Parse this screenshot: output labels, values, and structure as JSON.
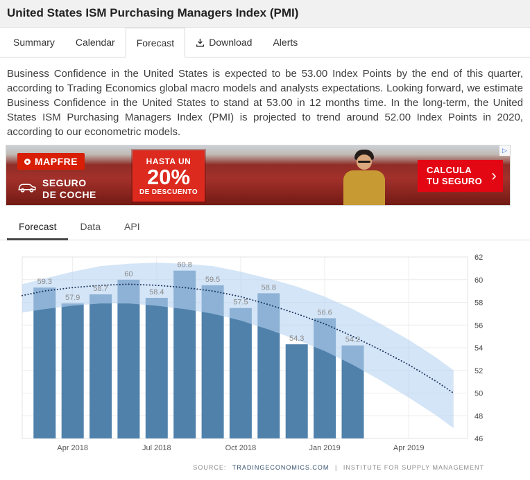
{
  "header": {
    "title": "United States ISM Purchasing Managers Index (PMI)"
  },
  "main_tabs": [
    {
      "label": "Summary"
    },
    {
      "label": "Calendar"
    },
    {
      "label": "Forecast"
    },
    {
      "label": "Download"
    },
    {
      "label": "Alerts"
    }
  ],
  "active_main_tab": "Forecast",
  "description": "Business Confidence in the United States is expected to be 53.00 Index Points by the end of this quarter, according to Trading Economics global macro models and analysts expectations. Looking forward, we estimate Business Confidence in the United States to stand at 53.00 in 12 months time. In the long-term, the United States ISM Purchasing Managers Index (PMI) is projected to trend around 52.00 Index Points in 2020, according to our econometric models.",
  "ad": {
    "brand": "MAPFRE",
    "product_line1": "SEGURO",
    "product_line2": "DE COCHE",
    "offer_top": "HASTA UN",
    "offer_value": "20%",
    "offer_bottom": "DE DESCUENTO",
    "cta_line1": "CALCULA",
    "cta_line2": "TU SEGURO",
    "chevron": "›",
    "adchoices_glyph": "▷"
  },
  "sub_tabs": [
    {
      "label": "Forecast"
    },
    {
      "label": "Data"
    },
    {
      "label": "API"
    }
  ],
  "active_sub_tab": "Forecast",
  "chart_data": {
    "type": "bar",
    "title": "United States ISM Purchasing Managers Index (PMI) forecast",
    "xlabel": "",
    "ylabel": "",
    "ylim": [
      46,
      62
    ],
    "yticks": [
      46,
      48,
      50,
      52,
      54,
      56,
      58,
      60,
      62
    ],
    "y_axis_position": "right",
    "grid": true,
    "categories": [
      "Mar 2018",
      "Apr 2018",
      "May 2018",
      "Jun 2018",
      "Jul 2018",
      "Aug 2018",
      "Sep 2018",
      "Oct 2018",
      "Nov 2018",
      "Dec 2018",
      "Jan 2019",
      "Feb 2019"
    ],
    "values": [
      59.3,
      57.9,
      58.7,
      60,
      58.4,
      60.8,
      59.5,
      57.5,
      58.8,
      54.3,
      56.6,
      54.2
    ],
    "bar_labels": [
      "59.3",
      "57.9",
      "58.7",
      "60",
      "58.4",
      "60.8",
      "59.5",
      "57.5",
      "58.8",
      "54.3",
      "56.6",
      "54.2"
    ],
    "x_tick_labels": [
      "Apr 2018",
      "Jul 2018",
      "Oct 2018",
      "Jan 2019",
      "Apr 2019"
    ],
    "x_tick_positions": [
      1,
      4,
      7,
      10,
      13
    ],
    "forecast_band": {
      "x": [
        -0.8,
        0,
        1,
        2,
        3,
        4,
        5,
        6,
        7,
        8,
        9,
        10,
        11,
        12,
        13,
        14,
        14.6
      ],
      "upper": [
        59.6,
        60.1,
        60.7,
        61.2,
        61.4,
        61.5,
        61.4,
        61.2,
        60.7,
        60.1,
        59.4,
        58.5,
        57.4,
        56.1,
        54.7,
        53.1,
        52.0
      ],
      "mid": [
        58.6,
        59.0,
        59.3,
        59.5,
        59.6,
        59.5,
        59.3,
        59.0,
        58.5,
        57.8,
        57.0,
        56.1,
        55.0,
        53.8,
        52.5,
        51.0,
        50.0
      ],
      "lower": [
        57.1,
        57.4,
        57.7,
        57.9,
        57.9,
        57.7,
        57.4,
        57.0,
        56.4,
        55.6,
        54.7,
        53.7,
        52.5,
        51.1,
        49.6,
        48.0,
        46.9
      ]
    },
    "colors": {
      "bar": "#4f81ab",
      "band": "#b7d3f2",
      "trend": "#1e355e"
    }
  },
  "footer": {
    "source_label": "SOURCE:",
    "source_primary": "TRADINGECONOMICS.COM",
    "separator": "|",
    "source_secondary": "INSTITUTE FOR SUPPLY MANAGEMENT"
  }
}
